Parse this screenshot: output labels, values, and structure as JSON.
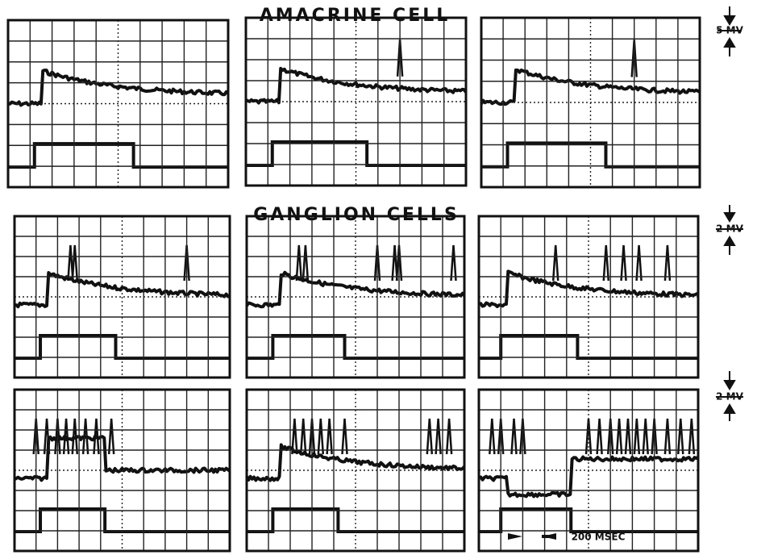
{
  "title_top": "AMACRINE CELL",
  "title_middle": "GANGLION CELLS",
  "scale_bars": [
    {
      "label": "5 MV"
    },
    {
      "label": "2 MV"
    },
    {
      "label": "2 MV"
    }
  ],
  "time_scale": "200 MSEC"
}
